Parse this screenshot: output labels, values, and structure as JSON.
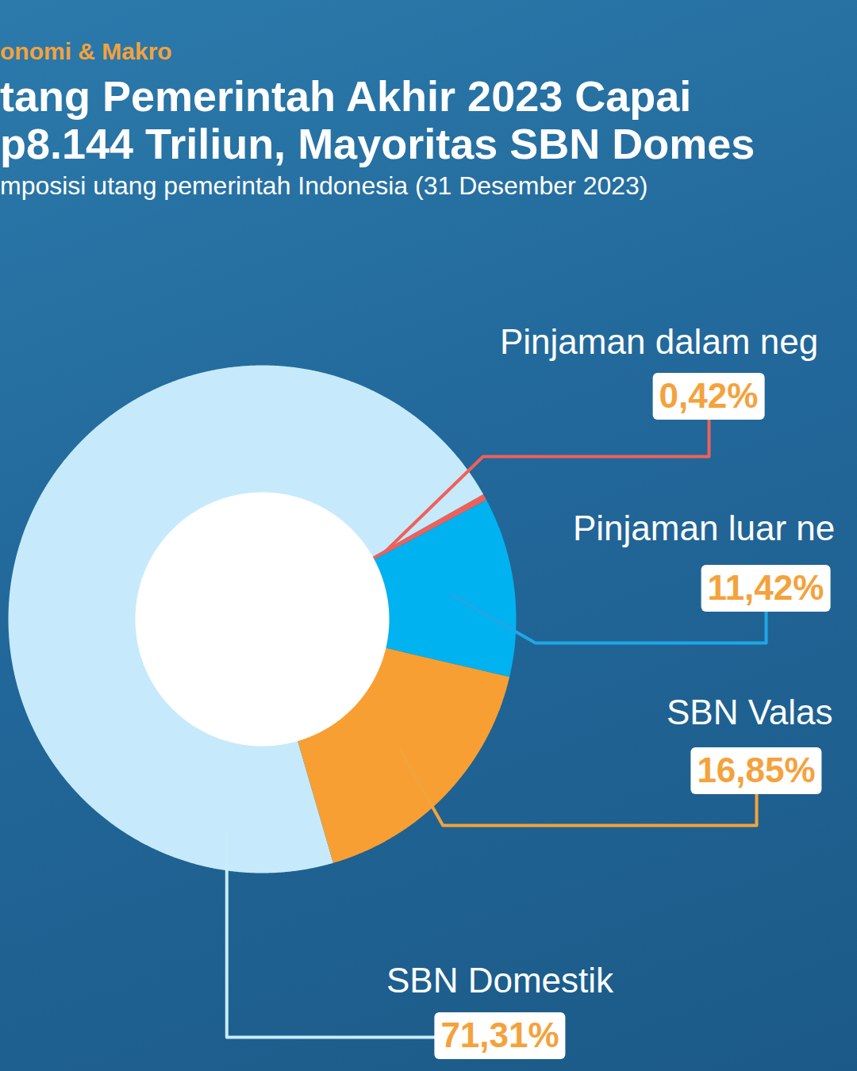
{
  "chart_data": {
    "type": "donut",
    "annotations": [
      "onomi & Makro"
    ],
    "title": [
      "tang Pemerintah Akhir 2023 Capai",
      "p8.144 Triliun, Mayoritas SBN Domes"
    ],
    "subtitle": "mposisi utang pemerintah Indonesia (31 Desember 2023)",
    "categories": [
      "Pinjaman dalam neg",
      "Pinjaman luar ne",
      "SBN Valas",
      "SBN Domestik"
    ],
    "values": [
      0.42,
      11.42,
      16.85,
      71.31
    ],
    "value_labels": [
      "0,42%",
      "11,42%",
      "16,85%",
      "71,31%"
    ],
    "colors": [
      "#f0605a",
      "#00b2f0",
      "#f79f33",
      "#c6eafb"
    ],
    "data_labels": true
  }
}
